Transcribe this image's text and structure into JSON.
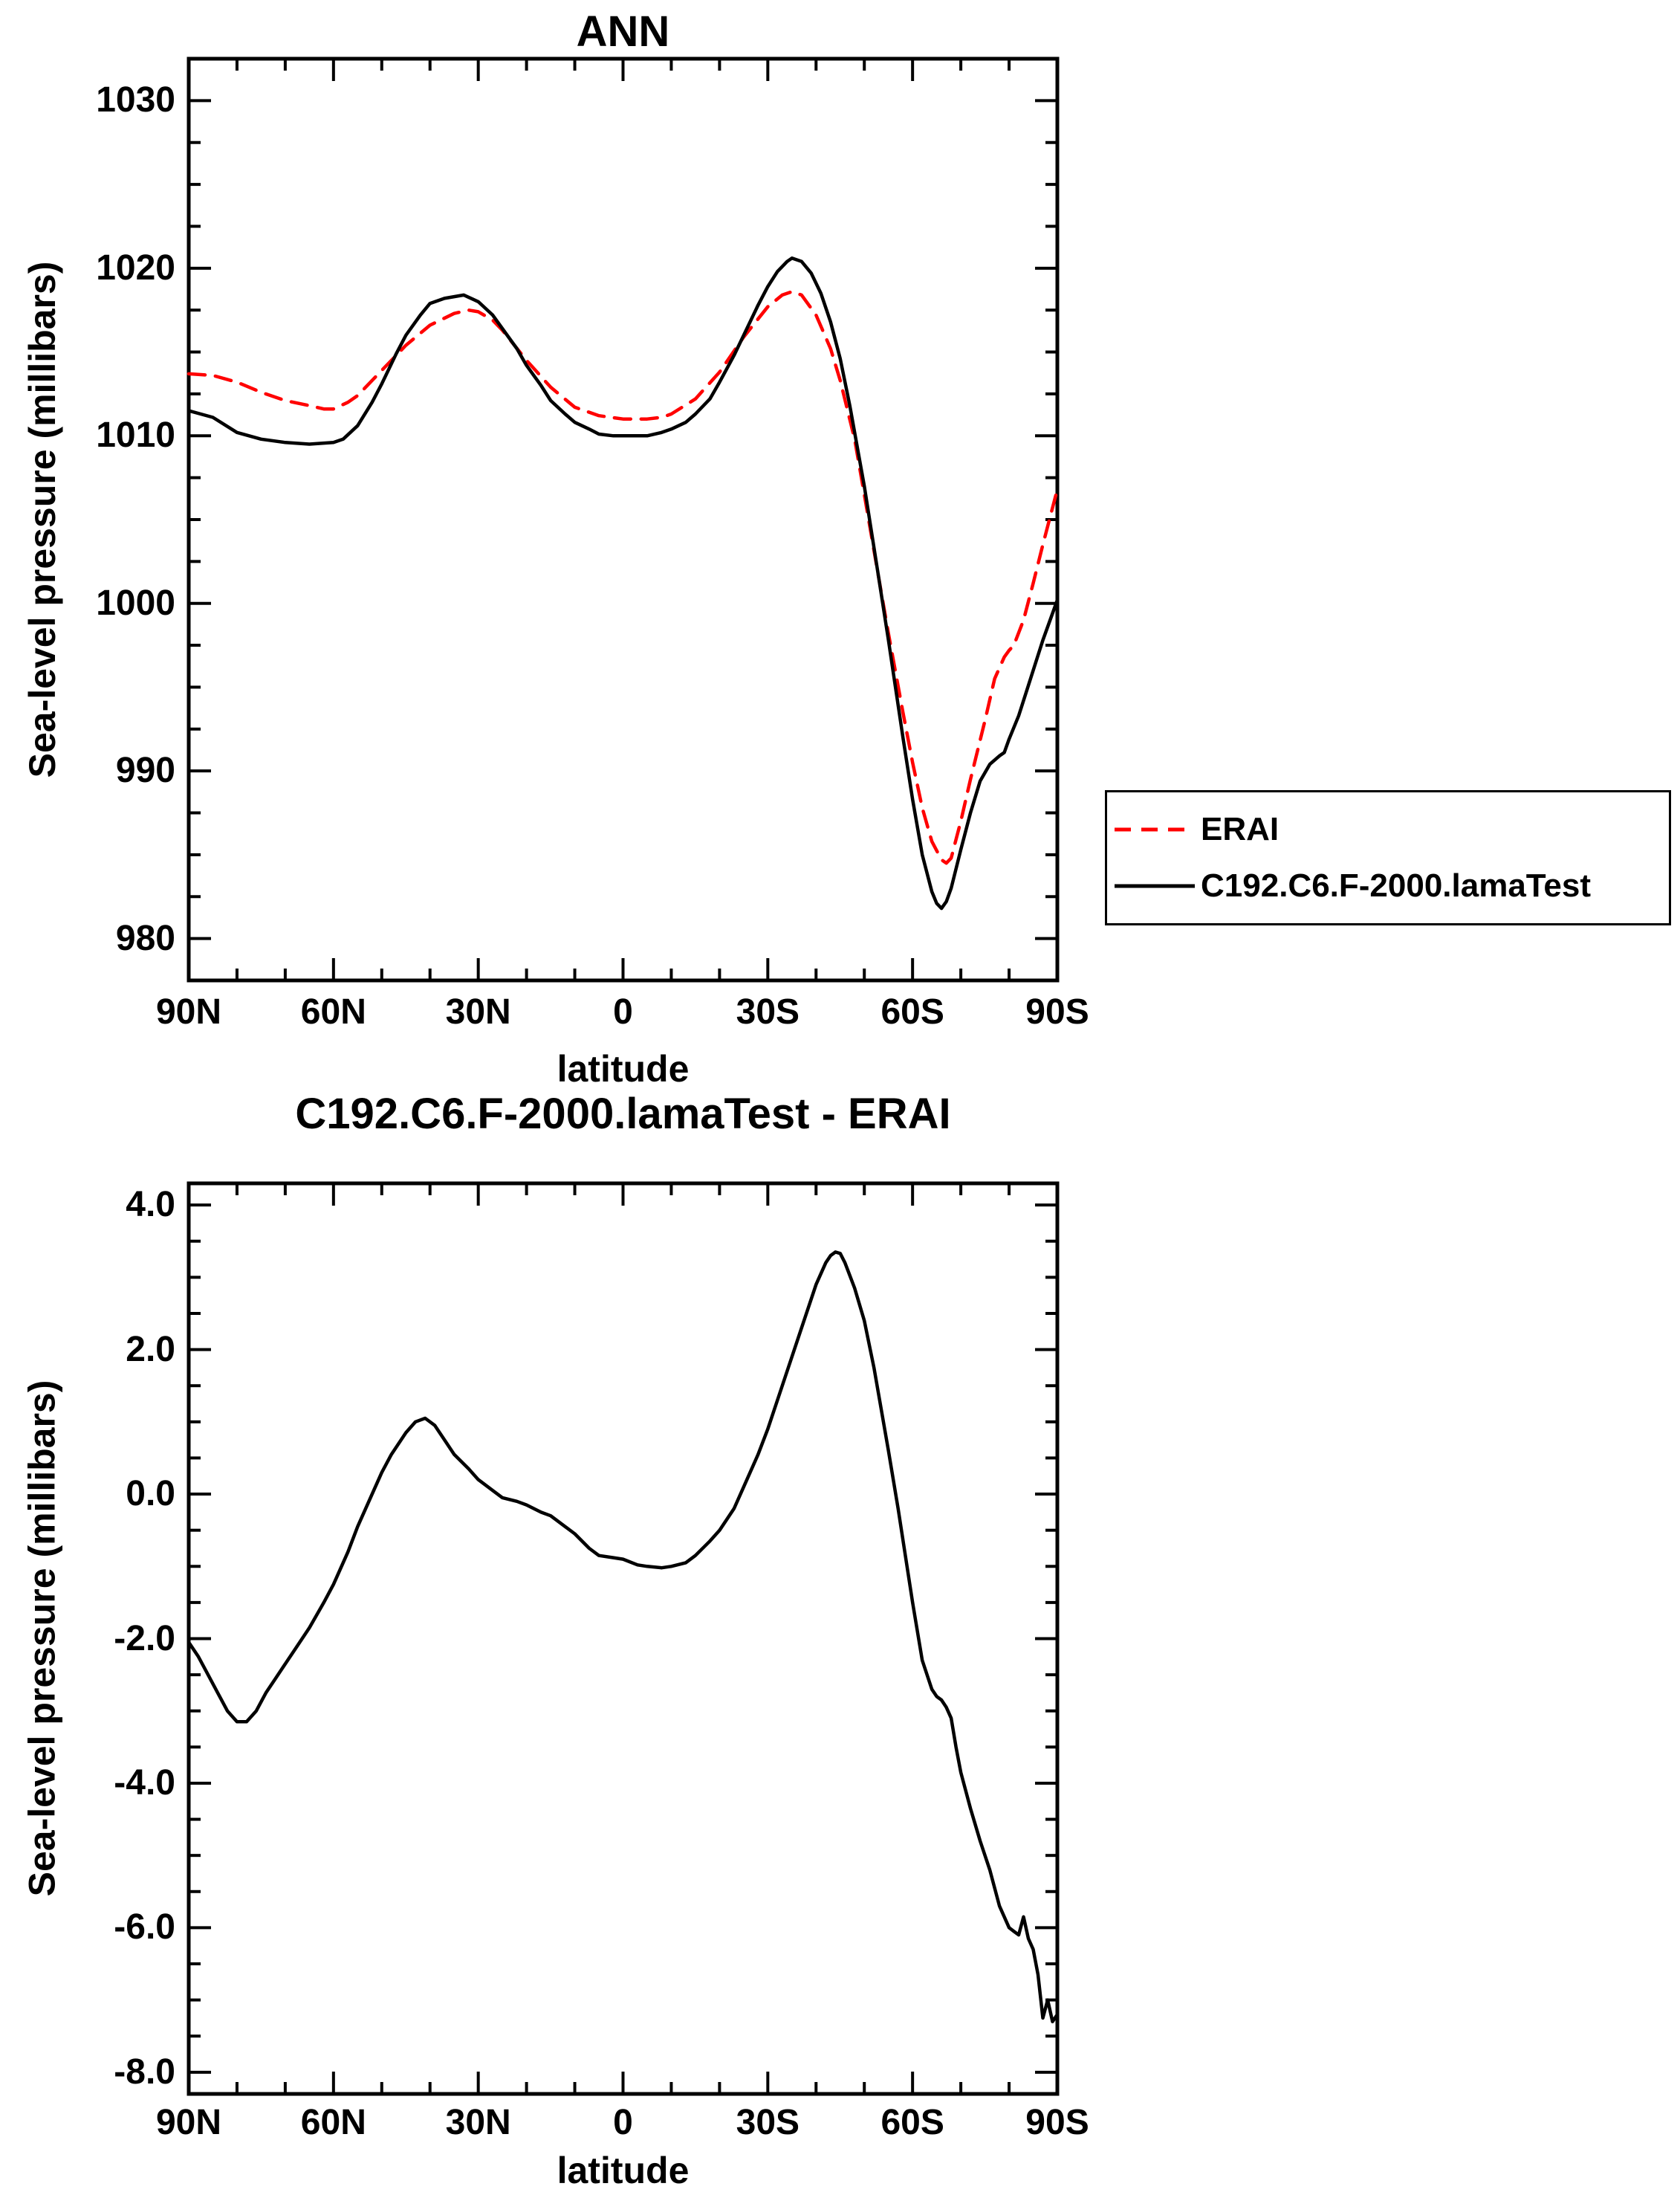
{
  "figure": {
    "background": "#ffffff",
    "axis_color": "#000000"
  },
  "legend": {
    "entries": [
      {
        "label": "ERAI"
      },
      {
        "label": "C192.C6.F-2000.lamaTest"
      }
    ]
  },
  "chart_data": [
    {
      "type": "line",
      "title": "ANN",
      "xlabel": "latitude",
      "ylabel": "Sea-level pressure (millibars)",
      "xlim": [
        90,
        -90
      ],
      "ylim": [
        977.5,
        1032.5
      ],
      "x_minor_step": 10,
      "y_minor_step": 2.5,
      "y_major_step": 10,
      "x_ticks": [
        {
          "v": 90,
          "label": "90N"
        },
        {
          "v": 60,
          "label": "60N"
        },
        {
          "v": 30,
          "label": "30N"
        },
        {
          "v": 0,
          "label": "0"
        },
        {
          "v": -30,
          "label": "30S"
        },
        {
          "v": -60,
          "label": "60S"
        },
        {
          "v": -90,
          "label": "90S"
        }
      ],
      "y_ticks": [
        {
          "v": 980,
          "label": "980"
        },
        {
          "v": 990,
          "label": "990"
        },
        {
          "v": 1000,
          "label": "1000"
        },
        {
          "v": 1010,
          "label": "1010"
        },
        {
          "v": 1020,
          "label": "1020"
        },
        {
          "v": 1030,
          "label": "1030"
        }
      ],
      "legend_position": "right",
      "series": [
        {
          "name": "ERAI",
          "color": "#ff0000",
          "dash_pattern": "22 14",
          "points": [
            [
              90,
              1013.7
            ],
            [
              85,
              1013.6
            ],
            [
              80,
              1013.2
            ],
            [
              75,
              1012.6
            ],
            [
              70,
              1012.1
            ],
            [
              65,
              1011.8
            ],
            [
              62,
              1011.6
            ],
            [
              60,
              1011.6
            ],
            [
              57,
              1012.0
            ],
            [
              55,
              1012.4
            ],
            [
              50,
              1013.9
            ],
            [
              45,
              1015.4
            ],
            [
              40,
              1016.6
            ],
            [
              35,
              1017.3
            ],
            [
              32,
              1017.5
            ],
            [
              30,
              1017.4
            ],
            [
              27,
              1016.9
            ],
            [
              25,
              1016.3
            ],
            [
              20,
              1014.5
            ],
            [
              15,
              1012.9
            ],
            [
              10,
              1011.7
            ],
            [
              5,
              1011.2
            ],
            [
              0,
              1011.0
            ],
            [
              -5,
              1011.0
            ],
            [
              -8,
              1011.1
            ],
            [
              -10,
              1011.3
            ],
            [
              -15,
              1012.2
            ],
            [
              -20,
              1013.8
            ],
            [
              -25,
              1015.9
            ],
            [
              -30,
              1017.7
            ],
            [
              -33,
              1018.4
            ],
            [
              -35,
              1018.6
            ],
            [
              -37,
              1018.4
            ],
            [
              -40,
              1017.2
            ],
            [
              -43,
              1015.2
            ],
            [
              -45,
              1013.3
            ],
            [
              -48,
              1009.8
            ],
            [
              -50,
              1006.5
            ],
            [
              -53,
              1001.5
            ],
            [
              -55,
              998.2
            ],
            [
              -58,
              993.5
            ],
            [
              -60,
              990.5
            ],
            [
              -62,
              987.8
            ],
            [
              -64,
              985.8
            ],
            [
              -66,
              984.7
            ],
            [
              -67,
              984.5
            ],
            [
              -68,
              984.8
            ],
            [
              -70,
              987.0
            ],
            [
              -72,
              989.5
            ],
            [
              -75,
              993.0
            ],
            [
              -77,
              995.5
            ],
            [
              -79,
              996.8
            ],
            [
              -80,
              997.2
            ],
            [
              -81,
              997.5
            ],
            [
              -83,
              999.0
            ],
            [
              -85,
              1001.2
            ],
            [
              -87,
              1003.5
            ],
            [
              -90,
              1006.8
            ]
          ]
        },
        {
          "name": "C192.C6.F-2000.lamaTest",
          "color": "#000000",
          "dash_pattern": "none",
          "points": [
            [
              90,
              1011.5
            ],
            [
              85,
              1011.1
            ],
            [
              80,
              1010.2
            ],
            [
              75,
              1009.8
            ],
            [
              70,
              1009.6
            ],
            [
              65,
              1009.5
            ],
            [
              60,
              1009.6
            ],
            [
              58,
              1009.8
            ],
            [
              55,
              1010.6
            ],
            [
              52,
              1012.0
            ],
            [
              50,
              1013.1
            ],
            [
              47,
              1014.9
            ],
            [
              45,
              1016.0
            ],
            [
              42,
              1017.2
            ],
            [
              40,
              1017.9
            ],
            [
              37,
              1018.2
            ],
            [
              35,
              1018.3
            ],
            [
              33,
              1018.4
            ],
            [
              30,
              1018.0
            ],
            [
              27,
              1017.2
            ],
            [
              25,
              1016.4
            ],
            [
              22,
              1015.2
            ],
            [
              20,
              1014.2
            ],
            [
              17,
              1013.0
            ],
            [
              15,
              1012.1
            ],
            [
              12,
              1011.3
            ],
            [
              10,
              1010.8
            ],
            [
              7,
              1010.4
            ],
            [
              5,
              1010.1
            ],
            [
              2,
              1010.0
            ],
            [
              0,
              1010.0
            ],
            [
              -3,
              1010.0
            ],
            [
              -5,
              1010.0
            ],
            [
              -8,
              1010.2
            ],
            [
              -10,
              1010.4
            ],
            [
              -13,
              1010.8
            ],
            [
              -15,
              1011.3
            ],
            [
              -18,
              1012.2
            ],
            [
              -20,
              1013.2
            ],
            [
              -23,
              1014.8
            ],
            [
              -25,
              1016.0
            ],
            [
              -28,
              1017.8
            ],
            [
              -30,
              1018.9
            ],
            [
              -32,
              1019.8
            ],
            [
              -34,
              1020.4
            ],
            [
              -35,
              1020.6
            ],
            [
              -37,
              1020.4
            ],
            [
              -39,
              1019.7
            ],
            [
              -41,
              1018.5
            ],
            [
              -43,
              1016.8
            ],
            [
              -45,
              1014.6
            ],
            [
              -47,
              1011.8
            ],
            [
              -50,
              1007.0
            ],
            [
              -53,
              1001.5
            ],
            [
              -55,
              997.8
            ],
            [
              -58,
              992.0
            ],
            [
              -60,
              988.3
            ],
            [
              -62,
              985.0
            ],
            [
              -64,
              982.8
            ],
            [
              -65,
              982.1
            ],
            [
              -66,
              981.8
            ],
            [
              -67,
              982.2
            ],
            [
              -68,
              983.0
            ],
            [
              -70,
              985.3
            ],
            [
              -72,
              987.5
            ],
            [
              -74,
              989.4
            ],
            [
              -76,
              990.4
            ],
            [
              -78,
              990.9
            ],
            [
              -79,
              991.1
            ],
            [
              -80,
              991.9
            ],
            [
              -82,
              993.3
            ],
            [
              -85,
              996.0
            ],
            [
              -87,
              997.8
            ],
            [
              -90,
              1000.2
            ]
          ]
        }
      ]
    },
    {
      "type": "line",
      "title": "C192.C6.F-2000.lamaTest - ERAI",
      "xlabel": "latitude",
      "ylabel": "Sea-level pressure (millibars)",
      "xlim": [
        90,
        -90
      ],
      "ylim": [
        -8.3,
        4.3
      ],
      "x_minor_step": 10,
      "y_minor_step": 0.5,
      "y_major_step": 2,
      "x_ticks": [
        {
          "v": 90,
          "label": "90N"
        },
        {
          "v": 60,
          "label": "60N"
        },
        {
          "v": 30,
          "label": "30N"
        },
        {
          "v": 0,
          "label": "0"
        },
        {
          "v": -30,
          "label": "30S"
        },
        {
          "v": -60,
          "label": "60S"
        },
        {
          "v": -90,
          "label": "90S"
        }
      ],
      "y_ticks": [
        {
          "v": -8,
          "label": "-8.0"
        },
        {
          "v": -6,
          "label": "-6.0"
        },
        {
          "v": -4,
          "label": "-4.0"
        },
        {
          "v": -2,
          "label": "-2.0"
        },
        {
          "v": 0,
          "label": "0.0"
        },
        {
          "v": 2,
          "label": "2.0"
        },
        {
          "v": 4,
          "label": "4.0"
        }
      ],
      "series": [
        {
          "name": "C192.C6.F-2000.lamaTest - ERAI",
          "color": "#000000",
          "dash_pattern": "none",
          "points": [
            [
              90,
              -2.05
            ],
            [
              88,
              -2.25
            ],
            [
              86,
              -2.5
            ],
            [
              84,
              -2.75
            ],
            [
              82,
              -3.0
            ],
            [
              80,
              -3.15
            ],
            [
              78,
              -3.15
            ],
            [
              76,
              -3.0
            ],
            [
              74,
              -2.75
            ],
            [
              72,
              -2.55
            ],
            [
              70,
              -2.35
            ],
            [
              68,
              -2.15
            ],
            [
              65,
              -1.85
            ],
            [
              62,
              -1.5
            ],
            [
              60,
              -1.25
            ],
            [
              57,
              -0.8
            ],
            [
              55,
              -0.45
            ],
            [
              52,
              0.0
            ],
            [
              50,
              0.3
            ],
            [
              48,
              0.55
            ],
            [
              45,
              0.85
            ],
            [
              43,
              1.0
            ],
            [
              41,
              1.05
            ],
            [
              39,
              0.95
            ],
            [
              37,
              0.75
            ],
            [
              35,
              0.55
            ],
            [
              32,
              0.35
            ],
            [
              30,
              0.2
            ],
            [
              27,
              0.05
            ],
            [
              25,
              -0.05
            ],
            [
              22,
              -0.1
            ],
            [
              20,
              -0.15
            ],
            [
              17,
              -0.25
            ],
            [
              15,
              -0.3
            ],
            [
              12,
              -0.45
            ],
            [
              10,
              -0.55
            ],
            [
              7,
              -0.75
            ],
            [
              5,
              -0.85
            ],
            [
              2,
              -0.88
            ],
            [
              0,
              -0.9
            ],
            [
              -3,
              -0.98
            ],
            [
              -5,
              -1.0
            ],
            [
              -8,
              -1.02
            ],
            [
              -10,
              -1.0
            ],
            [
              -13,
              -0.95
            ],
            [
              -15,
              -0.85
            ],
            [
              -18,
              -0.65
            ],
            [
              -20,
              -0.5
            ],
            [
              -23,
              -0.2
            ],
            [
              -25,
              0.1
            ],
            [
              -28,
              0.55
            ],
            [
              -30,
              0.9
            ],
            [
              -32,
              1.3
            ],
            [
              -35,
              1.9
            ],
            [
              -37,
              2.3
            ],
            [
              -40,
              2.9
            ],
            [
              -42,
              3.2
            ],
            [
              -43,
              3.3
            ],
            [
              -44,
              3.35
            ],
            [
              -45,
              3.33
            ],
            [
              -46,
              3.2
            ],
            [
              -48,
              2.85
            ],
            [
              -50,
              2.4
            ],
            [
              -52,
              1.75
            ],
            [
              -55,
              0.6
            ],
            [
              -57,
              -0.2
            ],
            [
              -60,
              -1.5
            ],
            [
              -62,
              -2.3
            ],
            [
              -64,
              -2.7
            ],
            [
              -65,
              -2.8
            ],
            [
              -66,
              -2.85
            ],
            [
              -67,
              -2.95
            ],
            [
              -68,
              -3.1
            ],
            [
              -69,
              -3.5
            ],
            [
              -70,
              -3.85
            ],
            [
              -72,
              -4.35
            ],
            [
              -74,
              -4.8
            ],
            [
              -76,
              -5.2
            ],
            [
              -78,
              -5.7
            ],
            [
              -80,
              -6.0
            ],
            [
              -81,
              -6.05
            ],
            [
              -82,
              -6.1
            ],
            [
              -83,
              -5.85
            ],
            [
              -84,
              -6.15
            ],
            [
              -85,
              -6.3
            ],
            [
              -86,
              -6.65
            ],
            [
              -87,
              -7.25
            ],
            [
              -88,
              -7.0
            ],
            [
              -89,
              -7.3
            ],
            [
              -90,
              -7.2
            ]
          ]
        }
      ]
    }
  ]
}
